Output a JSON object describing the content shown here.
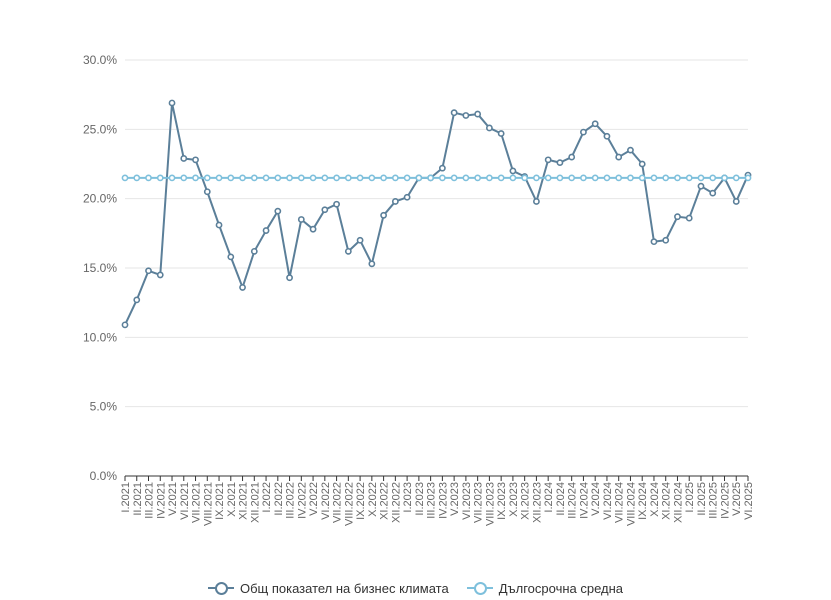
{
  "chart_data": {
    "type": "line",
    "categories": [
      "I.2021",
      "II.2021",
      "III.2021",
      "IV.2021",
      "V.2021",
      "VI.2021",
      "VII.2021",
      "VIII.2021",
      "IX.2021",
      "X.2021",
      "XI.2021",
      "XII.2021",
      "I.2022",
      "II.2022",
      "III.2022",
      "IV.2022",
      "V.2022",
      "VI.2022",
      "VII.2022",
      "VIII.2022",
      "IX.2022",
      "X.2022",
      "XI.2022",
      "XII.2022",
      "I.2023",
      "II.2023",
      "III.2023",
      "IV.2023",
      "V.2023",
      "VI.2023",
      "VII.2023",
      "VIII.2023",
      "IX.2023",
      "X.2023",
      "XI.2023",
      "XII.2023",
      "I.2024",
      "II.2024",
      "III.2024",
      "IV.2024",
      "V.2024",
      "VI.2024",
      "VII.2024",
      "VIII.2024",
      "IX.2024",
      "X.2024",
      "XI.2024",
      "XII.2024",
      "I.2025",
      "II.2025",
      "III.2025",
      "IV.2025",
      "V.2025",
      "VI.2025"
    ],
    "series": [
      {
        "name": "Общ показател на бизнес климата",
        "color": "#5b7f99",
        "values": [
          10.9,
          12.7,
          14.8,
          14.5,
          26.9,
          22.9,
          22.8,
          20.5,
          18.1,
          15.8,
          13.6,
          16.2,
          17.7,
          19.1,
          14.3,
          18.5,
          17.8,
          19.2,
          19.6,
          16.2,
          17.0,
          15.3,
          18.8,
          19.8,
          20.1,
          21.5,
          21.5,
          22.2,
          26.2,
          26.0,
          26.1,
          25.1,
          24.7,
          22.0,
          21.6,
          19.8,
          22.8,
          22.6,
          23.0,
          24.8,
          25.4,
          24.5,
          23.0,
          23.5,
          22.5,
          16.9,
          17.0,
          18.7,
          18.6,
          20.9,
          20.4,
          21.5,
          19.8,
          21.7
        ]
      },
      {
        "name": "Дългосрочна средна",
        "color": "#7ec0dc",
        "values": [
          21.5,
          21.5,
          21.5,
          21.5,
          21.5,
          21.5,
          21.5,
          21.5,
          21.5,
          21.5,
          21.5,
          21.5,
          21.5,
          21.5,
          21.5,
          21.5,
          21.5,
          21.5,
          21.5,
          21.5,
          21.5,
          21.5,
          21.5,
          21.5,
          21.5,
          21.5,
          21.5,
          21.5,
          21.5,
          21.5,
          21.5,
          21.5,
          21.5,
          21.5,
          21.5,
          21.5,
          21.5,
          21.5,
          21.5,
          21.5,
          21.5,
          21.5,
          21.5,
          21.5,
          21.5,
          21.5,
          21.5,
          21.5,
          21.5,
          21.5,
          21.5,
          21.5,
          21.5,
          21.5
        ]
      }
    ],
    "yticks": [
      "0.0%",
      "5.0%",
      "10.0%",
      "15.0%",
      "20.0%",
      "25.0%",
      "30.0%"
    ],
    "ylim": [
      0,
      30
    ],
    "grid": true,
    "legend_position": "bottom"
  }
}
